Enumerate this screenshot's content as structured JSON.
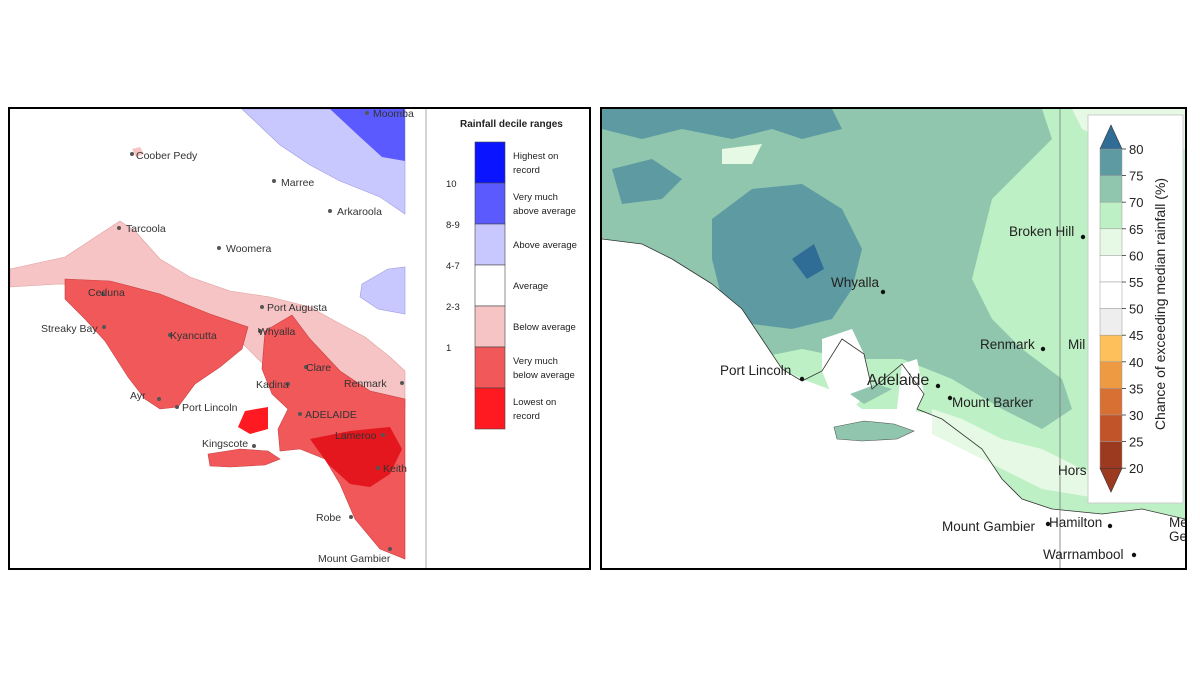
{
  "left_map": {
    "legend": {
      "title": "Rainfall decile ranges",
      "items": [
        {
          "decile": "",
          "line1": "Highest on",
          "line2": "record",
          "color": "#0a14ff"
        },
        {
          "decile": "10",
          "line1": "Very much",
          "line2": "above average",
          "color": "#5a5aff"
        },
        {
          "decile": "8-9",
          "line1": "Above average",
          "line2": "",
          "color": "#c8c8ff"
        },
        {
          "decile": "4-7",
          "line1": "Average",
          "line2": "",
          "color": "#ffffff"
        },
        {
          "decile": "2-3",
          "line1": "Below average",
          "line2": "",
          "color": "#f6c4c4"
        },
        {
          "decile": "1",
          "line1": "Very much",
          "line2": "below average",
          "color": "#f0585a"
        },
        {
          "decile": "",
          "line1": "Lowest on",
          "line2": "record",
          "color": "#ff1a22"
        }
      ]
    },
    "places": [
      "Moomba",
      "Coober Pedy",
      "Marree",
      "Arkaroola",
      "Tarcoola",
      "Woomera",
      "Ceduna",
      "Port Augusta",
      "Streaky Bay",
      "Kyancutta",
      "Whyalla",
      "Clare",
      "Kadina",
      "Renmark",
      "Ayr",
      "Port Lincoln",
      "ADELAIDE",
      "Kingscote",
      "Lameroo",
      "Keith",
      "Robe",
      "Mount Gambier"
    ]
  },
  "right_map": {
    "colorbar": {
      "label": "Chance of exceeding median rainfall (%)",
      "ticks": [
        "80",
        "75",
        "70",
        "65",
        "60",
        "55",
        "50",
        "45",
        "40",
        "35",
        "30",
        "25",
        "20"
      ],
      "colors": [
        "#2f6d96",
        "#5d9aa2",
        "#8fc6ad",
        "#bdf0c4",
        "#e6f9e4",
        "#ffffff",
        "#ffffff",
        "#eeeeee",
        "#fdc05b",
        "#ee9a42",
        "#d97033",
        "#c2542a",
        "#9c3a1f"
      ]
    },
    "places": [
      "Broken Hill",
      "Whyalla",
      "Renmark",
      "Mil",
      "Port Lincoln",
      "Adelaide",
      "Mount Barker",
      "Hors",
      "Mount Gambier",
      "Hamilton",
      "Me",
      "Ge",
      "Warrnambool"
    ]
  }
}
